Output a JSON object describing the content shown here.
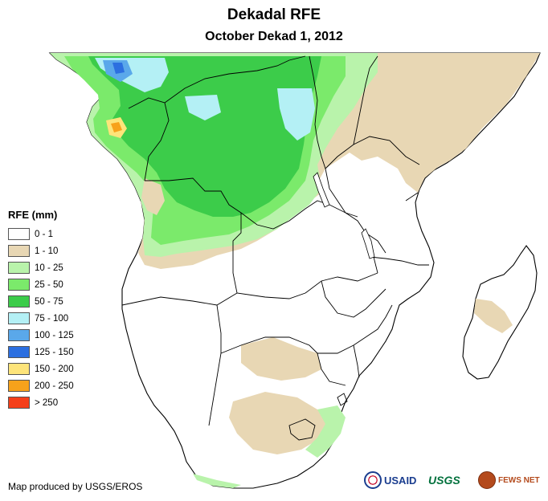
{
  "header": {
    "title": "Dekadal RFE",
    "subtitle": "October Dekad 1, 2012"
  },
  "legend": {
    "title": "RFE (mm)",
    "items": [
      {
        "label": "0 - 1",
        "color": "#ffffff"
      },
      {
        "label": "1 - 10",
        "color": "#e8d7b4"
      },
      {
        "label": "10 - 25",
        "color": "#b9f3ab"
      },
      {
        "label": "25 - 50",
        "color": "#7bea6b"
      },
      {
        "label": "50 - 75",
        "color": "#3ccc4a"
      },
      {
        "label": "75 - 100",
        "color": "#b4f0f5"
      },
      {
        "label": "100 - 125",
        "color": "#5aa8ea"
      },
      {
        "label": "125 - 150",
        "color": "#2c6fe0"
      },
      {
        "label": "150 - 200",
        "color": "#fde47a"
      },
      {
        "label": "200 - 250",
        "color": "#f7a21b"
      },
      {
        "label": "> 250",
        "color": "#f43f1a"
      }
    ]
  },
  "footer": {
    "credit": "Map produced by USGS/EROS",
    "logos": {
      "usaid": "USAID",
      "usgs": "USGS",
      "fews": "FEWS NET"
    }
  }
}
